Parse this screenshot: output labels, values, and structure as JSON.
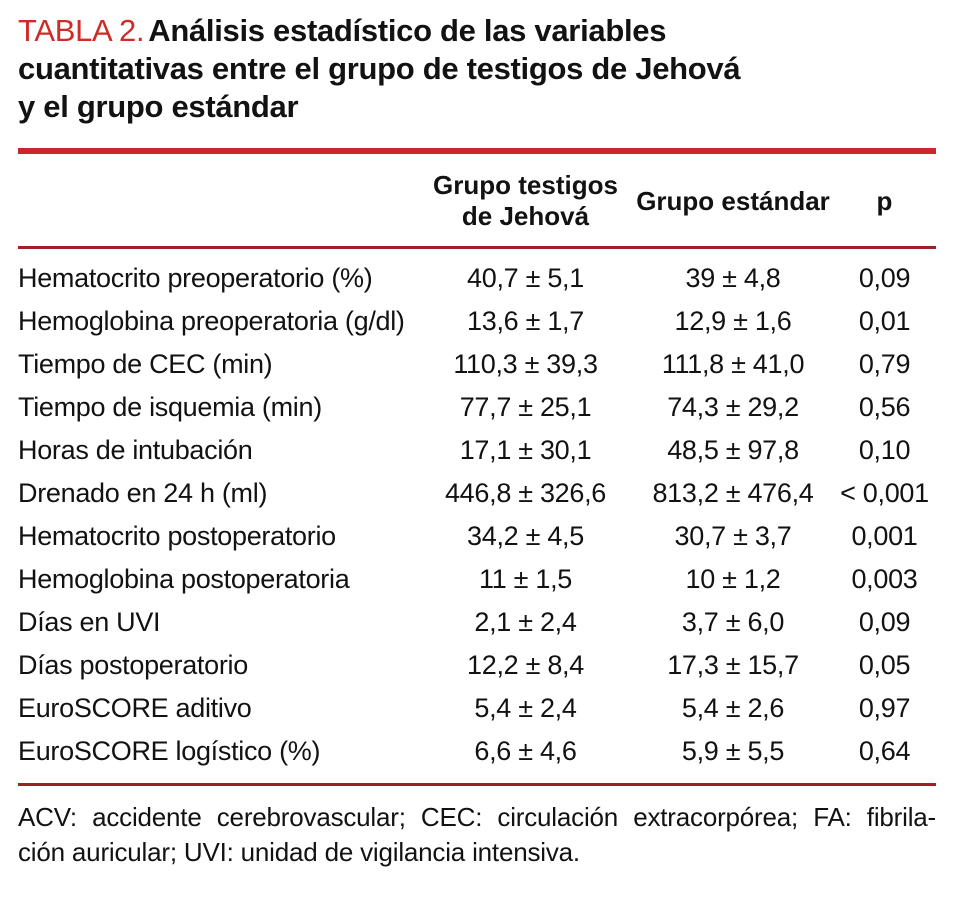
{
  "title": {
    "label": "TABLA 2.",
    "line1": "Análisis estadístico de las variables",
    "line2": "cuantitativas entre el grupo de testigos de Jehová",
    "line3": "y el grupo estándar",
    "full_text": "TABLA 2. Análisis estadístico de las variables cuantitativas entre el grupo de testigos de Jehová y el grupo estándar"
  },
  "table": {
    "headers": {
      "variable": "",
      "group1": "Grupo testigos de Jehová",
      "group2": "Grupo estándar",
      "p": "p"
    },
    "rows": [
      {
        "label": "Hematocrito preoperatorio (%)",
        "group1": "40,7 ± 5,1",
        "group2": "39 ± 4,8",
        "p": "0,09"
      },
      {
        "label": "Hemoglobina preoperatoria (g/dl)",
        "group1": "13,6 ± 1,7",
        "group2": "12,9 ± 1,6",
        "p": "0,01"
      },
      {
        "label": "Tiempo de CEC (min)",
        "group1": "110,3 ± 39,3",
        "group2": "111,8 ± 41,0",
        "p": "0,79"
      },
      {
        "label": "Tiempo de isquemia (min)",
        "group1": "77,7 ± 25,1",
        "group2": "74,3 ± 29,2",
        "p": "0,56"
      },
      {
        "label": "Horas de intubación",
        "group1": "17,1 ± 30,1",
        "group2": "48,5 ± 97,8",
        "p": "0,10"
      },
      {
        "label": "Drenado en 24 h (ml)",
        "group1": "446,8 ± 326,6",
        "group2": "813,2 ± 476,4",
        "p": "< 0,001"
      },
      {
        "label": "Hematocrito postoperatorio",
        "group1": "34,2 ± 4,5",
        "group2": "30,7 ± 3,7",
        "p": "0,001"
      },
      {
        "label": "Hemoglobina postoperatoria",
        "group1": "11 ± 1,5",
        "group2": "10 ± 1,2",
        "p": "0,003"
      },
      {
        "label": "Días en UVI",
        "group1": "2,1 ± 2,4",
        "group2": "3,7 ± 6,0",
        "p": "0,09"
      },
      {
        "label": "Días postoperatorio",
        "group1": "12,2 ± 8,4",
        "group2": "17,3 ± 15,7",
        "p": "0,05"
      },
      {
        "label": "EuroSCORE aditivo",
        "group1": "5,4 ± 2,4",
        "group2": "5,4 ± 2,6",
        "p": "0,97"
      },
      {
        "label": "EuroSCORE logístico (%)",
        "group1": "6,6 ± 4,6",
        "group2": "5,9 ± 5,5",
        "p": "0,64"
      }
    ]
  },
  "footnote": {
    "line1": "ACV: accidente cerebrovascular; CEC: circulación extracorpórea; FA: fibrila-",
    "line2": "ción auricular; UVI: unidad de vigilancia intensiva.",
    "full_text": "ACV: accidente cerebrovascular; CEC: circulación extracorpórea; FA: fibrilación auricular; UVI: unidad de vigilancia intensiva."
  },
  "colors": {
    "accent_red": "#cf2b27",
    "rule_red": "#c9262d",
    "rule_dark": "#9e2125"
  }
}
